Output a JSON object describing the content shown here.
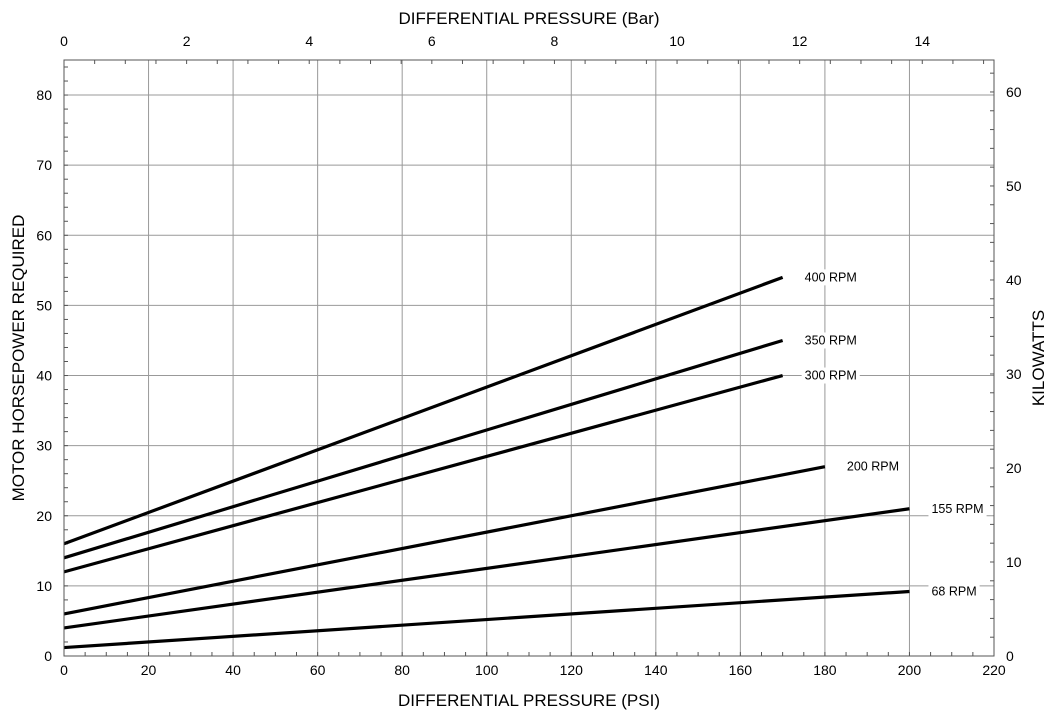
{
  "chart_data": {
    "type": "line",
    "xlabel": "DIFFERENTIAL PRESSURE (PSI)",
    "x2label": "DIFFERENTIAL PRESSURE (Bar)",
    "ylabel": "MOTOR HORSEPOWER REQUIRED",
    "y2label": "KILOWATTS",
    "xlim": [
      0,
      220
    ],
    "ylim": [
      0,
      85
    ],
    "x2lim": [
      0,
      15.17
    ],
    "y2lim": [
      0,
      63.4
    ],
    "x_ticks": [
      0,
      20,
      40,
      60,
      80,
      100,
      120,
      140,
      160,
      180,
      200,
      220
    ],
    "y_ticks": [
      0,
      10,
      20,
      30,
      40,
      50,
      60,
      70,
      80
    ],
    "x2_ticks": [
      0,
      2,
      4,
      6,
      8,
      10,
      12,
      14
    ],
    "y2_ticks": [
      0,
      10,
      20,
      30,
      40,
      50,
      60
    ],
    "grid": true,
    "legend": "none",
    "series": [
      {
        "name": "400 RPM",
        "x": [
          0,
          170
        ],
        "y": [
          16,
          54
        ]
      },
      {
        "name": "350 RPM",
        "x": [
          0,
          170
        ],
        "y": [
          14,
          45
        ]
      },
      {
        "name": "300 RPM",
        "x": [
          0,
          170
        ],
        "y": [
          12,
          40
        ]
      },
      {
        "name": "200 RPM",
        "x": [
          0,
          180
        ],
        "y": [
          6,
          27
        ]
      },
      {
        "name": "155 RPM",
        "x": [
          0,
          200
        ],
        "y": [
          4,
          21
        ]
      },
      {
        "name": "68 RPM",
        "x": [
          0,
          200
        ],
        "y": [
          1.2,
          9.2
        ]
      }
    ]
  }
}
